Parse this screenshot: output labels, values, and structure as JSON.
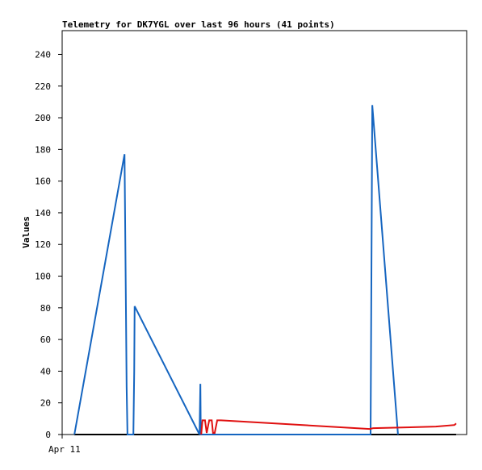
{
  "chart_data": {
    "type": "line",
    "title": "Telemetry for DK7YGL over last 96 hours (41 points)",
    "y_label": "Values",
    "xlim": [
      0,
      96
    ],
    "xticks": [
      {
        "value": 0,
        "label": "Apr 11"
      }
    ],
    "ylim": [
      0,
      255
    ],
    "yticks": [
      0,
      20,
      40,
      60,
      80,
      100,
      120,
      140,
      160,
      180,
      200,
      220,
      240
    ],
    "grid": false,
    "series": [
      {
        "color": "#000000",
        "x": [
          2.9,
          93.5
        ],
        "values": [
          0,
          0
        ]
      },
      {
        "color": "#1565c0",
        "x": [
          2.9,
          14.8,
          14.9,
          15.1,
          15.3,
          15.5,
          16.9,
          17.1,
          17.2,
          32.6,
          32.8,
          32.9,
          73.2,
          73.4,
          73.6,
          79.7
        ],
        "values": [
          0,
          177,
          148,
          90,
          30,
          0,
          0,
          40,
          81,
          0,
          32,
          0,
          0,
          104,
          208,
          0
        ]
      },
      {
        "color": "#e01010",
        "x": [
          33.0,
          33.3,
          33.9,
          34.3,
          34.9,
          35.5,
          35.8,
          36.2,
          36.8,
          37.7,
          73.0,
          73.8,
          88.7,
          93.1,
          93.5
        ],
        "values": [
          0,
          9,
          9,
          1,
          9,
          9,
          1,
          1,
          9,
          9,
          3.5,
          4,
          5,
          6,
          7
        ]
      }
    ]
  }
}
